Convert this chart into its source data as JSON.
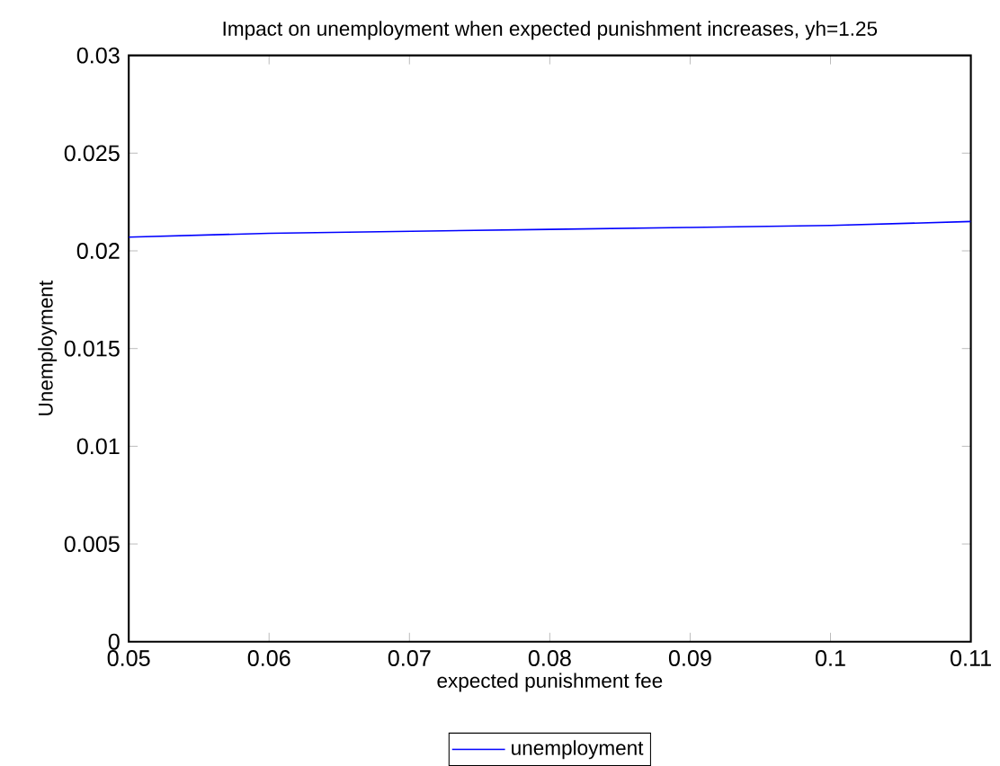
{
  "chart_data": {
    "type": "line",
    "title": "Impact on unemployment when expected punishment increases, yh=1.25",
    "xlabel": "expected punishment fee",
    "ylabel": "Unemployment",
    "x": [
      0.05,
      0.06,
      0.07,
      0.08,
      0.09,
      0.1,
      0.11
    ],
    "series": [
      {
        "name": "unemployment",
        "color": "#0000ff",
        "values": [
          0.0207,
          0.0209,
          0.021,
          0.0211,
          0.0212,
          0.0213,
          0.0215
        ]
      }
    ],
    "xlim": [
      0.05,
      0.11
    ],
    "ylim": [
      0,
      0.03
    ],
    "xticks": [
      0.05,
      0.06,
      0.07,
      0.08,
      0.09,
      0.1,
      0.11
    ],
    "yticks": [
      0,
      0.005,
      0.01,
      0.015,
      0.02,
      0.025,
      0.03
    ],
    "grid": false,
    "legend": "bottom",
    "marker": "none",
    "line_style": "solid"
  }
}
